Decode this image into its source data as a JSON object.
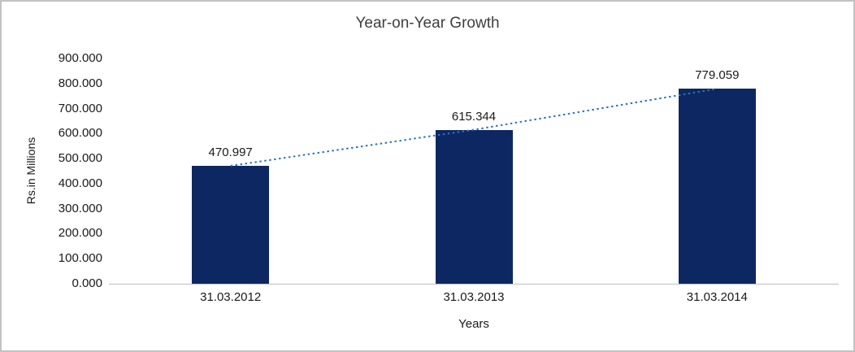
{
  "chart_data": {
    "type": "bar",
    "title": "Year-on-Year Growth",
    "categories": [
      "31.03.2012",
      "31.03.2013",
      "31.03.2014"
    ],
    "values": [
      470.997,
      615.344,
      779.059
    ],
    "value_labels": [
      "470.997",
      "615.344",
      "779.059"
    ],
    "xlabel": "Years",
    "ylabel": "Rs.in Millions",
    "ylim": [
      0,
      900
    ],
    "ytick_step": 100,
    "ytick_labels": [
      "0.000",
      "100.000",
      "200.000",
      "300.000",
      "400.000",
      "500.000",
      "600.000",
      "700.000",
      "800.000",
      "900.000"
    ],
    "bar_color": "#0d2763",
    "trendline_color": "#2e75b6",
    "trendline_style": "dotted",
    "grid": false,
    "legend": "none"
  }
}
